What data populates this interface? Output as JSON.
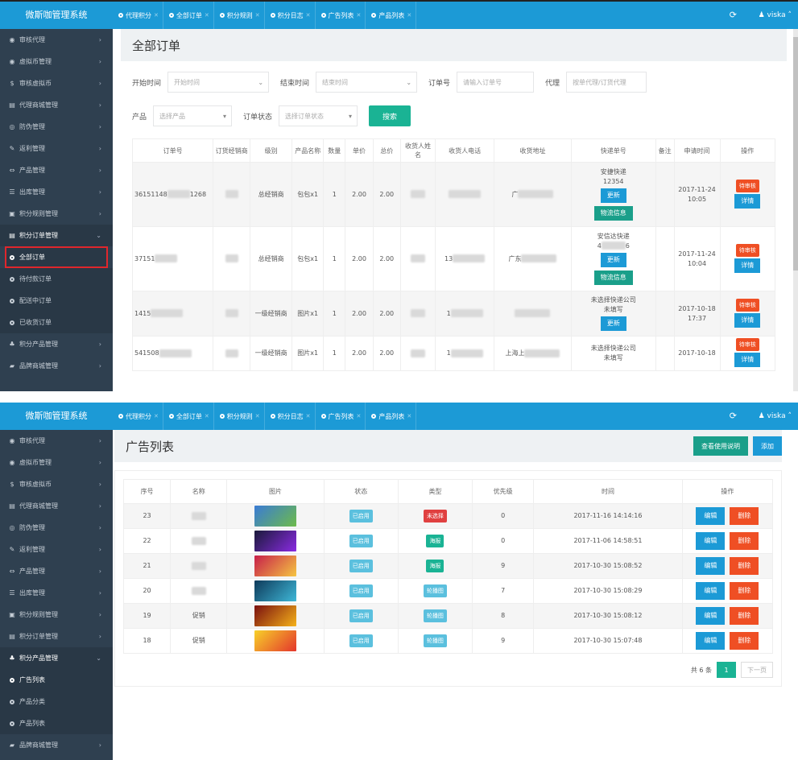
{
  "brand": "微斯咖管理系统",
  "tabs": [
    {
      "label": "代理积分"
    },
    {
      "label": "全部订单"
    },
    {
      "label": "积分规则"
    },
    {
      "label": "积分日志"
    },
    {
      "label": "广告列表"
    },
    {
      "label": "产品列表"
    }
  ],
  "user": "viska",
  "refresh_icon": "⟳",
  "screen1": {
    "sidebar": [
      {
        "icon": "◉",
        "label": "审核代理"
      },
      {
        "icon": "◉",
        "label": "虚拟币管理"
      },
      {
        "icon": "$",
        "label": "审核虚拟币"
      },
      {
        "icon": "▤",
        "label": "代理商城管理"
      },
      {
        "icon": "◎",
        "label": "防伪管理"
      },
      {
        "icon": "✎",
        "label": "返利管理"
      },
      {
        "icon": "⇔",
        "label": "产品管理"
      },
      {
        "icon": "☰",
        "label": "出库管理"
      },
      {
        "icon": "▣",
        "label": "积分规则管理"
      },
      {
        "icon": "▤",
        "label": "积分订单管理"
      }
    ],
    "sub": [
      {
        "label": "全部订单"
      },
      {
        "label": "待付款订单"
      },
      {
        "label": "配送中订单"
      },
      {
        "label": "已收货订单"
      }
    ],
    "sidebar_after": [
      {
        "icon": "♣",
        "label": "积分产品管理"
      },
      {
        "icon": "▰",
        "label": "品牌商城管理"
      }
    ],
    "page_title": "全部订单",
    "filters": {
      "start_label": "开始时间",
      "start_ph": "开始时间",
      "end_label": "结束时间",
      "end_ph": "结束时间",
      "order_label": "订单号",
      "order_ph": "请输入订单号",
      "agent_label": "代理",
      "agent_ph": "按单代理/订货代理",
      "product_label": "产品",
      "product_ph": "选择产品",
      "status_label": "订单状态",
      "status_ph": "选择订单状态",
      "search_btn": "搜索"
    },
    "columns": [
      "订单号",
      "订货经销商",
      "级别",
      "产品名称",
      "数量",
      "单价",
      "总价",
      "收货人姓名",
      "收货人电话",
      "收货地址",
      "快递单号",
      "备注",
      "申请时间",
      "操作"
    ],
    "rows": [
      {
        "order": "36151148",
        "order_tail": "1268",
        "level": "总经销商",
        "product": "包包x1",
        "qty": "1",
        "price": "2.00",
        "total": "2.00",
        "addr": "广",
        "express": "安捷快递",
        "express_no": "12354",
        "update": "更新",
        "logistics": "物流信息",
        "time": "2017-11-24 10:05",
        "status": "待审核",
        "detail": "详情"
      },
      {
        "order": "37151",
        "level": "总经销商",
        "product": "包包x1",
        "qty": "1",
        "price": "2.00",
        "total": "2.00",
        "phone": "13",
        "addr": "广东",
        "express": "安信达快递",
        "express_no": "4",
        "express_tail": "6",
        "update": "更新",
        "logistics": "物流信息",
        "time": "2017-11-24 10:04",
        "status": "待审核",
        "detail": "详情"
      },
      {
        "order": "1415",
        "level": "一级经销商",
        "product": "图片x1",
        "qty": "1",
        "price": "2.00",
        "total": "2.00",
        "phone": "1",
        "express": "未选择快递公司",
        "express_no": "未填写",
        "update": "更新",
        "time": "2017-10-18 17:37",
        "status": "待审核",
        "detail": "详情"
      },
      {
        "order": "541508",
        "level": "一级经销商",
        "product": "图片x1",
        "qty": "1",
        "price": "2.00",
        "total": "2.00",
        "phone": "1",
        "addr": "上海上",
        "express": "未选择快递公司",
        "express_no": "未填写",
        "time": "2017-10-18",
        "status": "待审核",
        "detail": "详情"
      }
    ]
  },
  "screen2": {
    "sidebar": [
      {
        "icon": "◉",
        "label": "审核代理"
      },
      {
        "icon": "◉",
        "label": "虚拟币管理"
      },
      {
        "icon": "$",
        "label": "审核虚拟币"
      },
      {
        "icon": "▤",
        "label": "代理商城管理"
      },
      {
        "icon": "◎",
        "label": "防伪管理"
      },
      {
        "icon": "✎",
        "label": "返利管理"
      },
      {
        "icon": "⇔",
        "label": "产品管理"
      },
      {
        "icon": "☰",
        "label": "出库管理"
      },
      {
        "icon": "▣",
        "label": "积分规则管理"
      },
      {
        "icon": "▤",
        "label": "积分订单管理"
      },
      {
        "icon": "♣",
        "label": "积分产品管理"
      }
    ],
    "sub": [
      {
        "label": "广告列表"
      },
      {
        "label": "产品分类"
      },
      {
        "label": "产品列表"
      }
    ],
    "sidebar_after": [
      {
        "icon": "▰",
        "label": "品牌商城管理"
      }
    ],
    "page_title": "广告列表",
    "btn_help": "查看使用说明",
    "btn_add": "添加",
    "columns": [
      "序号",
      "名称",
      "图片",
      "状态",
      "类型",
      "优先级",
      "时间",
      "操作"
    ],
    "rows": [
      {
        "id": "23",
        "name": "",
        "status": "已启用",
        "type": "未选择",
        "type_color": "red",
        "priority": "0",
        "time": "2017-11-16 14:14:16",
        "img": [
          "#3a7bd5",
          "#6dbb4a"
        ]
      },
      {
        "id": "22",
        "name": "",
        "status": "已启用",
        "type": "海报",
        "type_color": "green",
        "priority": "0",
        "time": "2017-11-06 14:58:51",
        "img": [
          "#1a1a3a",
          "#8a2be2"
        ]
      },
      {
        "id": "21",
        "name": "",
        "status": "已启用",
        "type": "海报",
        "type_color": "green",
        "priority": "9",
        "time": "2017-10-30 15:08:52",
        "img": [
          "#c71f4a",
          "#f5c542"
        ]
      },
      {
        "id": "20",
        "name": "",
        "status": "已启用",
        "type": "轮播图",
        "type_color": "cyan",
        "priority": "7",
        "time": "2017-10-30 15:08:29",
        "img": [
          "#0e3a5a",
          "#3fb8d8"
        ]
      },
      {
        "id": "19",
        "name": "促销",
        "status": "已启用",
        "type": "轮播图",
        "type_color": "cyan",
        "priority": "8",
        "time": "2017-10-30 15:08:12",
        "img": [
          "#7a0f0f",
          "#f5b21a"
        ]
      },
      {
        "id": "18",
        "name": "促销",
        "status": "已启用",
        "type": "轮播图",
        "type_color": "cyan",
        "priority": "9",
        "time": "2017-10-30 15:07:48",
        "img": [
          "#f7d12a",
          "#e4362c"
        ]
      }
    ],
    "edit": "编辑",
    "delete": "删除",
    "pager": {
      "total": "共 6 条",
      "current": "1",
      "next": "下一页"
    }
  }
}
